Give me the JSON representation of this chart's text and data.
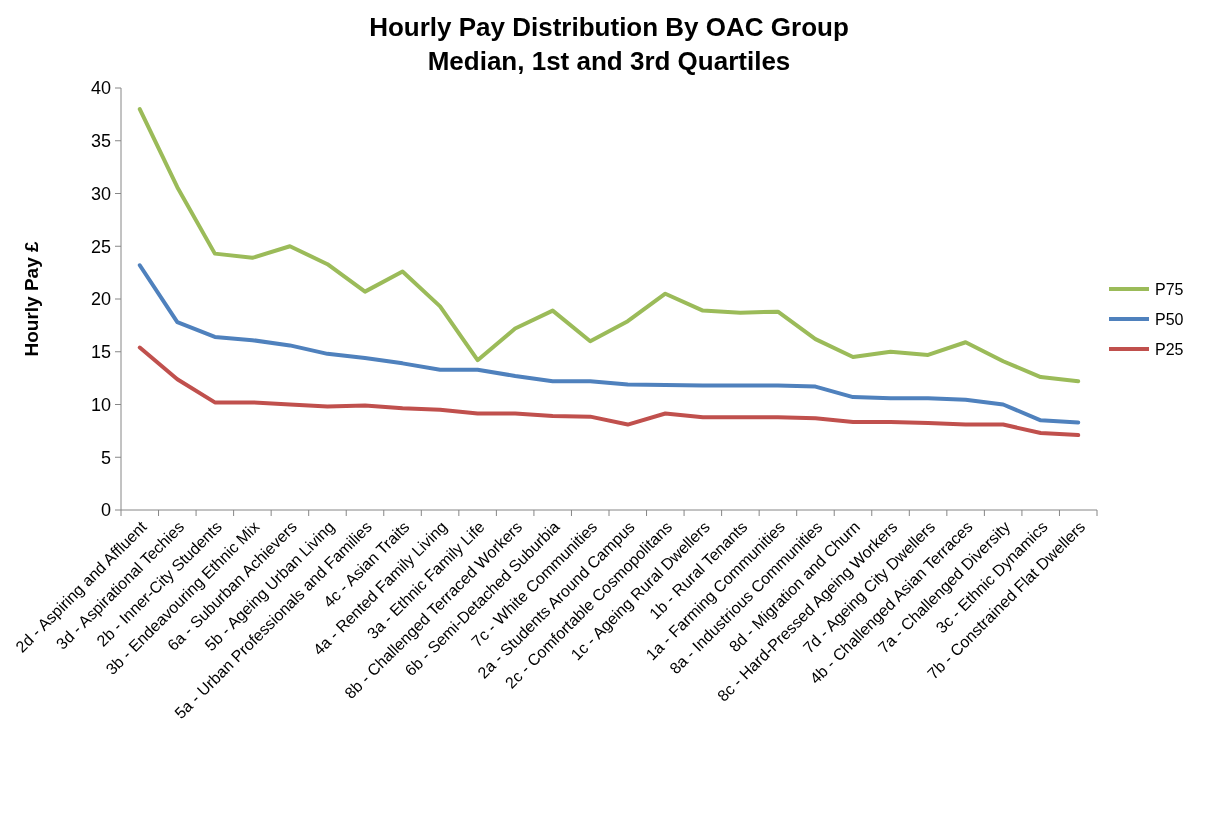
{
  "chart_data": {
    "type": "line",
    "title": "Hourly Pay Distribution By OAC Group\nMedian, 1st and 3rd Quartiles",
    "ylabel": "Hourly Pay £",
    "categories": [
      "2d - Aspiring and Affluent",
      "3d - Aspirational Techies",
      "2b - Inner-City Students",
      "3b - Endeavouring Ethnic Mix",
      "6a - Suburban Achievers",
      "5b - Ageing Urban Living",
      "5a - Urban Professionals and Families",
      "4c - Asian Traits",
      "4a - Rented Family Living",
      "3a - Ethnic Family Life",
      "8b - Challenged Terraced Workers",
      "6b - Semi-Detached Suburbia",
      "7c - White Communities",
      "2a - Students Around Campus",
      "2c - Comfortable Cosmopolitans",
      "1c - Ageing Rural Dwellers",
      "1b - Rural Tenants",
      "1a - Farming Communities",
      "8a - Industrious Communities",
      "8d - Migration and Churn",
      "8c - Hard-Pressed Ageing Workers",
      "7d - Ageing City Dwellers",
      "4b - Challenged Asian Terraces",
      "7a - Challenged Diversity",
      "3c - Ethnic Dynamics",
      "7b - Constrained Flat Dwellers"
    ],
    "series": [
      {
        "name": "P75",
        "color": "#9bbb59",
        "values": [
          38.0,
          30.6,
          24.3,
          23.9,
          25.0,
          23.3,
          20.7,
          22.6,
          19.3,
          14.2,
          17.2,
          18.9,
          16.0,
          17.9,
          20.5,
          18.9,
          18.7,
          18.8,
          16.2,
          14.5,
          15.0,
          14.7,
          15.9,
          14.1,
          12.6,
          12.2
        ]
      },
      {
        "name": "P50",
        "color": "#4f81bd",
        "values": [
          23.2,
          17.8,
          16.4,
          16.1,
          15.6,
          14.8,
          14.4,
          13.9,
          13.3,
          13.3,
          12.7,
          12.2,
          12.2,
          11.9,
          11.85,
          11.8,
          11.8,
          11.8,
          11.7,
          10.7,
          10.6,
          10.6,
          10.45,
          10.0,
          8.5,
          8.3
        ]
      },
      {
        "name": "P25",
        "color": "#c0504d",
        "values": [
          15.4,
          12.4,
          10.2,
          10.2,
          10.0,
          9.8,
          9.9,
          9.65,
          9.5,
          9.15,
          9.15,
          8.9,
          8.85,
          8.1,
          9.15,
          8.8,
          8.8,
          8.8,
          8.7,
          8.35,
          8.35,
          8.25,
          8.1,
          8.1,
          7.3,
          7.1
        ]
      }
    ],
    "ylim": [
      0,
      40
    ],
    "yticks": [
      0,
      5,
      10,
      15,
      20,
      25,
      30,
      35,
      40
    ],
    "legend": "right",
    "marker": "none",
    "line_style": "solid"
  }
}
